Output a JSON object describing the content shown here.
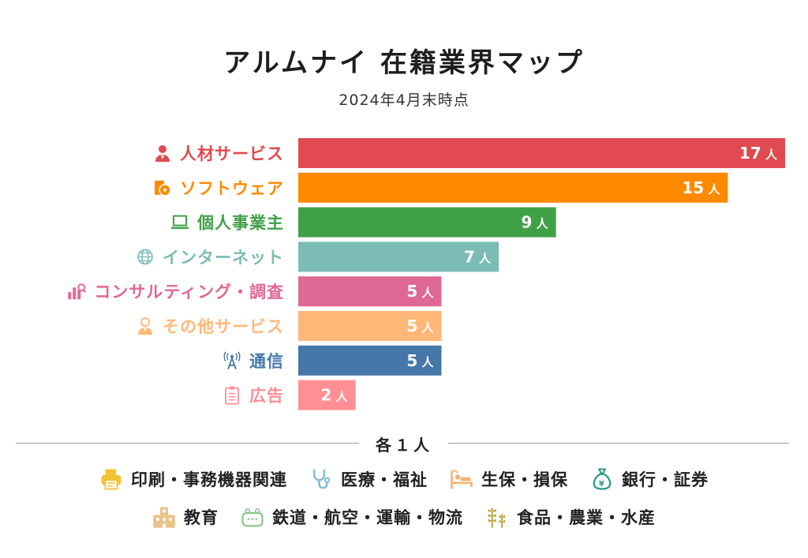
{
  "header": {
    "title": "アルムナイ 在籍業界マップ",
    "subtitle": "2024年4月末時点"
  },
  "chart_data": {
    "type": "bar",
    "orientation": "horizontal",
    "title": "アルムナイ 在籍業界マップ",
    "subtitle": "2024年4月末時点",
    "xlabel": "",
    "ylabel": "",
    "unit": "人",
    "grid": false,
    "categories": [
      "人材サービス",
      "ソフトウェア",
      "個人事業主",
      "インターネット",
      "コンサルティング・調査",
      "その他サービス",
      "通信",
      "広告"
    ],
    "values": [
      17,
      15,
      9,
      7,
      5,
      5,
      5,
      2
    ],
    "data_labels": [
      "17",
      "15",
      "9",
      "7",
      "5",
      "5",
      "5",
      "2"
    ],
    "colors": [
      "#e04a50",
      "#ff8a00",
      "#40a048",
      "#7bbcb4",
      "#e06895",
      "#ffb878",
      "#4578a8",
      "#ff8f95"
    ],
    "label_colors": [
      "#e04a50",
      "#ff8a00",
      "#40a048",
      "#7bbcb4",
      "#e06895",
      "#ffb878",
      "#4578a8",
      "#ff8f95"
    ],
    "icons": [
      "person-icon",
      "software-disc-icon",
      "laptop-icon",
      "globe-icon",
      "chart-search-icon",
      "person-service-icon",
      "antenna-icon",
      "clipboard-icon"
    ],
    "xlim": [
      0,
      17
    ]
  },
  "misc": {
    "heading": "各１人",
    "rows": [
      [
        {
          "label": "印刷・事務機器関連",
          "icon": "printer-icon",
          "color": "#f2c230"
        },
        {
          "label": "医療・福祉",
          "icon": "stethoscope-icon",
          "color": "#7ab8dc"
        },
        {
          "label": "生保・損保",
          "icon": "bed-icon",
          "color": "#f7b070"
        },
        {
          "label": "銀行・証券",
          "icon": "money-bag-icon",
          "color": "#2a9a88"
        }
      ],
      [
        {
          "label": "教育",
          "icon": "school-icon",
          "color": "#e8c48a"
        },
        {
          "label": "鉄道・航空・運輸・物流",
          "icon": "train-icon",
          "color": "#8cc88c"
        },
        {
          "label": "食品・農業・水産",
          "icon": "wheat-icon",
          "color": "#b8a030"
        }
      ]
    ]
  }
}
